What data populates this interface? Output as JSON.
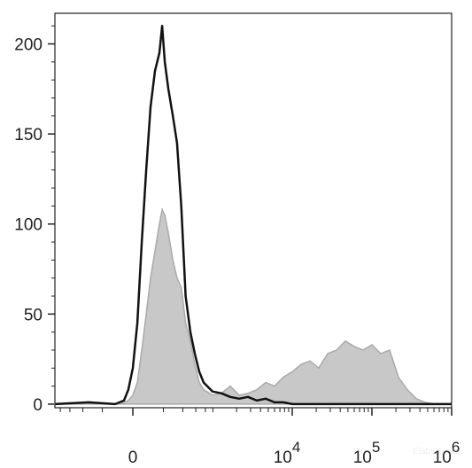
{
  "chart_data": {
    "type": "histogram-overlay",
    "xscale": "biexponential",
    "xlim": [
      -940,
      1000000
    ],
    "xticks": [
      0,
      {
        "value": 10000,
        "label": "10",
        "exponent": "4"
      },
      {
        "value": 100000,
        "label": "10",
        "exponent": "5"
      },
      {
        "value": 1000000,
        "label": "10",
        "exponent": "6"
      }
    ],
    "ylim": [
      -2,
      217
    ],
    "yticks": [
      0,
      50,
      100,
      150,
      200
    ],
    "watermark": "Elabscience",
    "x": [
      -930,
      -330,
      -107,
      -52,
      -26,
      0,
      26,
      52,
      79,
      107,
      137,
      169,
      190,
      212,
      243,
      286,
      330,
      381,
      437,
      509,
      583,
      667,
      762,
      989,
      1284,
      1662,
      2150,
      2780,
      3590,
      4640,
      5990,
      7740,
      10000,
      12900,
      16700,
      21500,
      27800,
      35900,
      46400,
      59900,
      77400,
      100000,
      129000,
      167000,
      215000,
      278000,
      359000,
      464000,
      599000,
      774000,
      1000000
    ],
    "series": [
      {
        "color": "#c8c8c8",
        "fill": true,
        "values": [
          0,
          0,
          0,
          1,
          2,
          5,
          12,
          30,
          50,
          70,
          85,
          100,
          108,
          105,
          95,
          80,
          70,
          65,
          45,
          35,
          22,
          12,
          8,
          5,
          6,
          10,
          5,
          6,
          8,
          12,
          10,
          15,
          18,
          22,
          24,
          20,
          28,
          30,
          35,
          32,
          30,
          33,
          28,
          30,
          15,
          8,
          3,
          1,
          0,
          0,
          0
        ]
      },
      {
        "color": "#111111",
        "fill": false,
        "values": [
          0,
          1,
          0,
          2,
          8,
          20,
          45,
          90,
          130,
          165,
          185,
          195,
          210,
          190,
          175,
          160,
          145,
          110,
          60,
          40,
          28,
          18,
          12,
          7,
          6,
          4,
          3,
          4,
          2,
          3,
          1,
          1,
          0,
          0,
          0,
          0,
          0,
          0,
          0,
          0,
          0,
          0,
          0,
          0,
          0,
          0,
          0,
          0,
          0,
          0,
          0
        ]
      }
    ]
  }
}
